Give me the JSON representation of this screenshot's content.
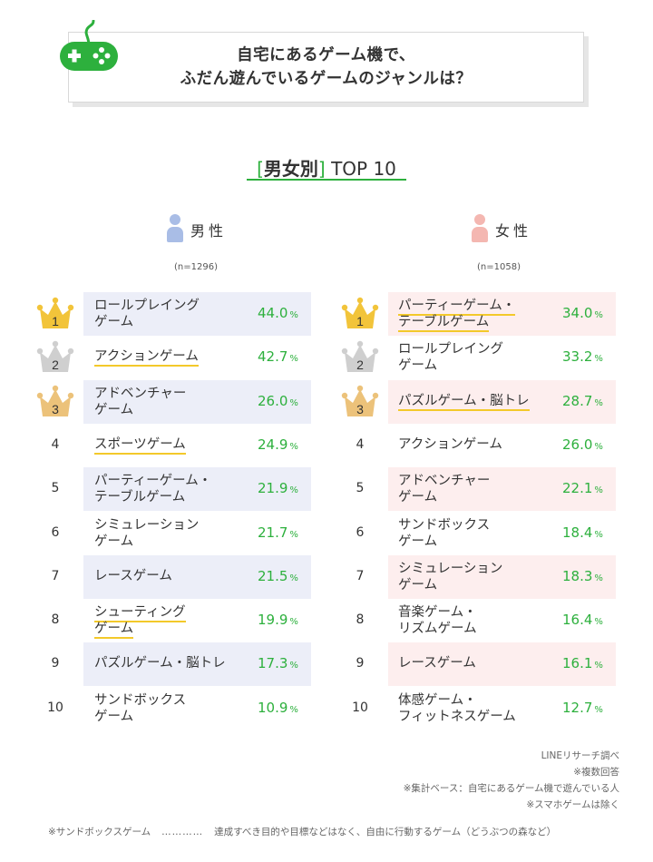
{
  "title": {
    "line1": "自宅にあるゲーム機で、",
    "line2": "ふだん遊んでいるゲームのジャンルは？"
  },
  "section": {
    "bracket_open": "[",
    "label": "男女別",
    "bracket_close": "]",
    "suffix": "TOP 10"
  },
  "colors": {
    "accent_green": "#2db03d",
    "male_bg": "#eceef8",
    "female_bg": "#fdeeee",
    "underline": "#f3c92a",
    "male_icon": "#a9bde6",
    "female_icon": "#f4b7b1",
    "gold": "#f2c43a",
    "silver": "#cfcfcf",
    "bronze": "#ecc27a"
  },
  "icons": {
    "header": "game-controller-icon",
    "male": "person-icon",
    "female": "person-icon",
    "rank1": "crown-gold-icon",
    "rank2": "crown-silver-icon",
    "rank3": "crown-bronze-icon"
  },
  "male": {
    "label": "男性",
    "n": "(n=1296)"
  },
  "female": {
    "label": "女性",
    "n": "(n=1058)"
  },
  "chart_data": [
    {
      "type": "table",
      "name": "男性",
      "unit": "%",
      "rows": [
        {
          "rank": "1",
          "lines": [
            "ロールプレイング",
            "ゲーム"
          ],
          "value": "44.0",
          "highlight": true,
          "underline": false
        },
        {
          "rank": "2",
          "lines": [
            "アクションゲーム"
          ],
          "value": "42.7",
          "highlight": false,
          "underline": true
        },
        {
          "rank": "3",
          "lines": [
            "アドベンチャー",
            "ゲーム"
          ],
          "value": "26.0",
          "highlight": true,
          "underline": false
        },
        {
          "rank": "4",
          "lines": [
            "スポーツゲーム"
          ],
          "value": "24.9",
          "highlight": false,
          "underline": true
        },
        {
          "rank": "5",
          "lines": [
            "パーティーゲーム・",
            "テーブルゲーム"
          ],
          "value": "21.9",
          "highlight": true,
          "underline": false
        },
        {
          "rank": "6",
          "lines": [
            "シミュレーション",
            "ゲーム"
          ],
          "value": "21.7",
          "highlight": false,
          "underline": false
        },
        {
          "rank": "7",
          "lines": [
            "レースゲーム"
          ],
          "value": "21.5",
          "highlight": true,
          "underline": false
        },
        {
          "rank": "8",
          "lines": [
            "シューティング",
            "ゲーム"
          ],
          "value": "19.9",
          "highlight": false,
          "underline": true
        },
        {
          "rank": "9",
          "lines": [
            "パズルゲーム・脳トレ"
          ],
          "value": "17.3",
          "highlight": true,
          "underline": false
        },
        {
          "rank": "10",
          "lines": [
            "サンドボックス",
            "ゲーム"
          ],
          "value": "10.9",
          "highlight": false,
          "underline": false
        }
      ]
    },
    {
      "type": "table",
      "name": "女性",
      "unit": "%",
      "rows": [
        {
          "rank": "1",
          "lines": [
            "パーティーゲーム・",
            "テーブルゲーム"
          ],
          "value": "34.0",
          "highlight": true,
          "underline": true
        },
        {
          "rank": "2",
          "lines": [
            "ロールプレイング",
            "ゲーム"
          ],
          "value": "33.2",
          "highlight": false,
          "underline": false
        },
        {
          "rank": "3",
          "lines": [
            "パズルゲーム・脳トレ"
          ],
          "value": "28.7",
          "highlight": true,
          "underline": true
        },
        {
          "rank": "4",
          "lines": [
            "アクションゲーム"
          ],
          "value": "26.0",
          "highlight": false,
          "underline": false
        },
        {
          "rank": "5",
          "lines": [
            "アドベンチャー",
            "ゲーム"
          ],
          "value": "22.1",
          "highlight": true,
          "underline": false
        },
        {
          "rank": "6",
          "lines": [
            "サンドボックス",
            "ゲーム"
          ],
          "value": "18.4",
          "highlight": false,
          "underline": false
        },
        {
          "rank": "7",
          "lines": [
            "シミュレーション",
            "ゲーム"
          ],
          "value": "18.3",
          "highlight": true,
          "underline": false
        },
        {
          "rank": "8",
          "lines": [
            "音楽ゲーム・",
            "リズムゲーム"
          ],
          "value": "16.4",
          "highlight": false,
          "underline": false
        },
        {
          "rank": "9",
          "lines": [
            "レースゲーム"
          ],
          "value": "16.1",
          "highlight": true,
          "underline": false
        },
        {
          "rank": "10",
          "lines": [
            "体感ゲーム・",
            "フィットネスゲーム"
          ],
          "value": "12.7",
          "highlight": false,
          "underline": false
        }
      ]
    }
  ],
  "notes": [
    "LINEリサーチ調べ",
    "※複数回答",
    "※集計ベース：自宅にあるゲーム機で遊んでいる人",
    "※スマホゲームは除く"
  ],
  "footnote": {
    "term": "※サンドボックスゲーム",
    "dots": "…………",
    "definition": "達成すべき目的や目標などはなく、自由に行動するゲーム（どうぶつの森など）"
  }
}
